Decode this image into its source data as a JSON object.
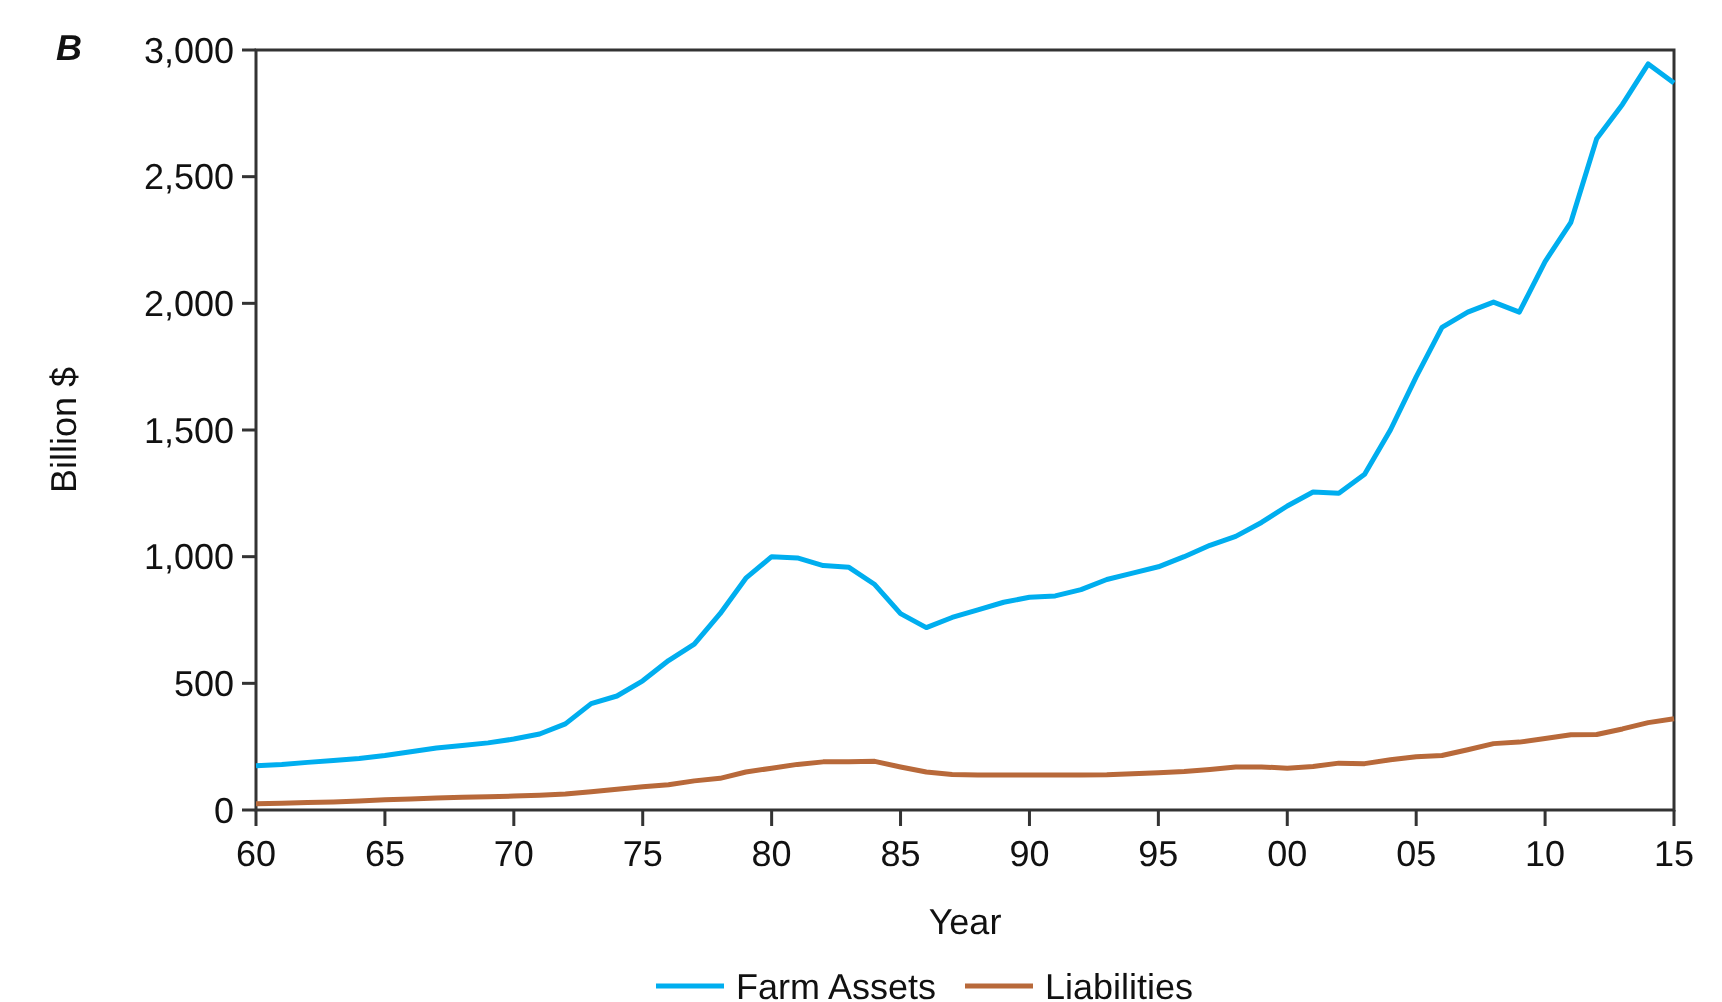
{
  "chart_data": {
    "type": "line",
    "title": "B",
    "xlabel": "Year",
    "ylabel": "Billion $",
    "x": [
      1960,
      1961,
      1962,
      1963,
      1964,
      1965,
      1966,
      1967,
      1968,
      1969,
      1970,
      1971,
      1972,
      1973,
      1974,
      1975,
      1976,
      1977,
      1978,
      1979,
      1980,
      1981,
      1982,
      1983,
      1984,
      1985,
      1986,
      1987,
      1988,
      1989,
      1990,
      1991,
      1992,
      1993,
      1994,
      1995,
      1996,
      1997,
      1998,
      1999,
      2000,
      2001,
      2002,
      2003,
      2004,
      2005,
      2006,
      2007,
      2008,
      2009,
      2010,
      2011,
      2012,
      2013,
      2014,
      2015
    ],
    "series": [
      {
        "name": "Farm Assets",
        "color": "#00aeef",
        "values": [
          175,
          180,
          188,
          195,
          203,
          215,
          230,
          245,
          255,
          265,
          280,
          300,
          340,
          420,
          450,
          510,
          590,
          655,
          775,
          915,
          1000,
          995,
          965,
          958,
          890,
          775,
          720,
          760,
          790,
          820,
          840,
          845,
          870,
          910,
          935,
          960,
          1000,
          1045,
          1080,
          1135,
          1200,
          1255,
          1250,
          1325,
          1500,
          1710,
          1905,
          1965,
          2005,
          1965,
          2165,
          2320,
          2650,
          2785,
          2945,
          2870
        ]
      },
      {
        "name": "Liabilities",
        "color": "#b8693a",
        "values": [
          25,
          27,
          30,
          32,
          36,
          40,
          43,
          47,
          50,
          52,
          55,
          58,
          63,
          72,
          82,
          92,
          100,
          115,
          125,
          150,
          165,
          180,
          190,
          190,
          192,
          170,
          150,
          140,
          138,
          138,
          138,
          138,
          138,
          139,
          143,
          147,
          152,
          160,
          170,
          170,
          165,
          172,
          185,
          183,
          198,
          210,
          215,
          238,
          262,
          268,
          282,
          297,
          298,
          320,
          345,
          360
        ]
      }
    ],
    "xlim": [
      1960,
      2015
    ],
    "xticks": [
      {
        "value": 1960,
        "label": "60"
      },
      {
        "value": 1965,
        "label": "65"
      },
      {
        "value": 1970,
        "label": "70"
      },
      {
        "value": 1975,
        "label": "75"
      },
      {
        "value": 1980,
        "label": "80"
      },
      {
        "value": 1985,
        "label": "85"
      },
      {
        "value": 1990,
        "label": "90"
      },
      {
        "value": 1995,
        "label": "95"
      },
      {
        "value": 2000,
        "label": "00"
      },
      {
        "value": 2005,
        "label": "05"
      },
      {
        "value": 2010,
        "label": "10"
      },
      {
        "value": 2015,
        "label": "15"
      }
    ],
    "ylim": [
      0,
      3000
    ],
    "yticks": [
      {
        "value": 0,
        "label": "0"
      },
      {
        "value": 500,
        "label": "500"
      },
      {
        "value": 1000,
        "label": "1,000"
      },
      {
        "value": 1500,
        "label": "1,500"
      },
      {
        "value": 2000,
        "label": "2,000"
      },
      {
        "value": 2500,
        "label": "2,500"
      },
      {
        "value": 3000,
        "label": "3,000"
      }
    ],
    "grid": false,
    "legend": "bottom",
    "line_style": "solid",
    "marker": "none"
  }
}
